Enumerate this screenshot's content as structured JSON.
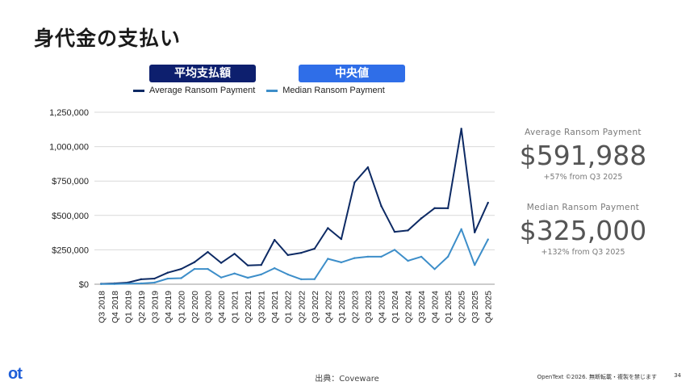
{
  "header": {
    "title": "身代金の支払い"
  },
  "pills": {
    "average": "平均支払額",
    "median": "中央値"
  },
  "colors": {
    "average": "#0d2a64",
    "median": "#3d8ec9",
    "grid": "#d9d9d9"
  },
  "kpis": [
    {
      "label": "Average Ransom Payment",
      "value": "$591,988",
      "delta": "+57% from Q3 2025"
    },
    {
      "label": "Median Ransom Payment",
      "value": "$325,000",
      "delta": "+132% from Q3 2025"
    }
  ],
  "footer": {
    "source": "出典：Coveware",
    "copyright": "OpenText ©2026. 無断転載・複製を禁じます",
    "page": "34",
    "logo": "ot"
  },
  "chart_data": {
    "type": "line",
    "xlabel": "",
    "ylabel": "",
    "ylim": [
      0,
      1250000
    ],
    "yticks": [
      0,
      250000,
      500000,
      750000,
      1000000,
      1250000
    ],
    "ytick_labels": [
      "$0",
      "$250,000",
      "$500,000",
      "$750,000",
      "1,000,000",
      "1,250,000"
    ],
    "grid": true,
    "legend": "top",
    "categories": [
      "Q3 2018",
      "Q4 2018",
      "Q1 2019",
      "Q2 2019",
      "Q3 2019",
      "Q4 2019",
      "Q1 2020",
      "Q2 2020",
      "Q3 2020",
      "Q4 2020",
      "Q1 2021",
      "Q2 2021",
      "Q3 2021",
      "Q4 2021",
      "Q1 2022",
      "Q2 2022",
      "Q3 2022",
      "Q4 2022",
      "Q1 2023",
      "Q2 2023",
      "Q3 2023",
      "Q4 2023",
      "Q1 2024",
      "Q2 2024",
      "Q3 2024",
      "Q4 2024",
      "Q1 2025",
      "Q2 2025",
      "Q3 2025",
      "Q4 2025"
    ],
    "series": [
      {
        "name": "Average Ransom Payment",
        "values": [
          3000,
          6000,
          12000,
          36000,
          41000,
          84000,
          111000,
          160000,
          234000,
          155000,
          221000,
          137000,
          140000,
          322000,
          212000,
          228000,
          258000,
          408000,
          328000,
          740000,
          850000,
          568000,
          381000,
          391000,
          479000,
          553000,
          552000,
          1130000,
          377000,
          591988
        ]
      },
      {
        "name": "Median Ransom Payment",
        "values": [
          1000,
          2000,
          4000,
          6000,
          12000,
          41000,
          44000,
          111000,
          111000,
          49000,
          78000,
          47000,
          71000,
          117000,
          71000,
          36000,
          37000,
          185000,
          159000,
          190000,
          200000,
          200000,
          250000,
          170000,
          200000,
          110000,
          200000,
          400000,
          140000,
          325000
        ]
      }
    ]
  }
}
